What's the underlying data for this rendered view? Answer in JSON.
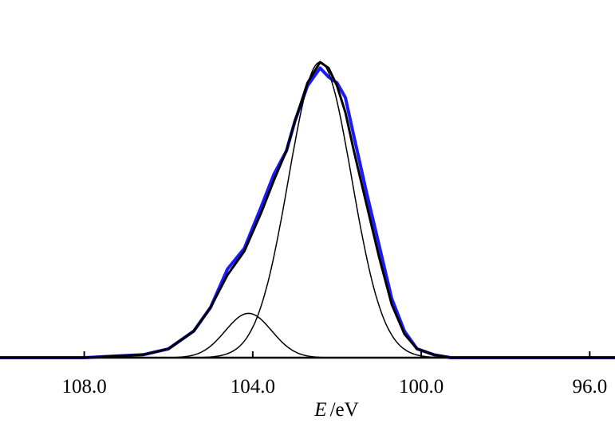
{
  "chart_data": {
    "type": "line",
    "title": "",
    "xlabel_var": "E",
    "xlabel_unit": "/eV",
    "x_reversed": true,
    "xlim": [
      110.0,
      95.4
    ],
    "ylim": [
      0,
      1.0
    ],
    "grid": false,
    "xticks": [
      {
        "value": 108.0,
        "label": "108.0"
      },
      {
        "value": 104.0,
        "label": "104.0"
      },
      {
        "value": 100.0,
        "label": "100.0"
      },
      {
        "value": 96.0,
        "label": "96.0"
      }
    ],
    "series": [
      {
        "kind": "measured",
        "color": "#1a1aff",
        "x": [
          110.0,
          108.0,
          106.6,
          106.0,
          105.4,
          105.0,
          104.6,
          104.2,
          103.8,
          103.5,
          103.2,
          103.0,
          102.7,
          102.4,
          102.2,
          102.0,
          101.8,
          101.6,
          101.3,
          101.0,
          100.7,
          100.4,
          100.1,
          99.7,
          99.3,
          98.0,
          96.0,
          95.4
        ],
        "y": [
          0.0,
          0.0,
          0.01,
          0.03,
          0.09,
          0.17,
          0.3,
          0.37,
          0.51,
          0.62,
          0.7,
          0.8,
          0.92,
          0.98,
          0.95,
          0.93,
          0.88,
          0.75,
          0.56,
          0.38,
          0.2,
          0.09,
          0.03,
          0.01,
          0.0,
          0.0,
          0.0,
          0.0
        ]
      },
      {
        "kind": "fit-envelope",
        "color": "#000000",
        "x": [
          110.0,
          108.0,
          106.6,
          106.0,
          105.4,
          105.0,
          104.6,
          104.2,
          103.8,
          103.5,
          103.2,
          103.0,
          102.7,
          102.4,
          102.2,
          102.0,
          101.8,
          101.6,
          101.3,
          101.0,
          100.7,
          100.4,
          100.1,
          99.7,
          99.3,
          98.0,
          96.0,
          95.4
        ],
        "y": [
          0.0,
          0.0,
          0.01,
          0.03,
          0.09,
          0.17,
          0.28,
          0.36,
          0.49,
          0.6,
          0.7,
          0.8,
          0.93,
          1.0,
          0.98,
          0.92,
          0.83,
          0.7,
          0.52,
          0.34,
          0.18,
          0.08,
          0.03,
          0.01,
          0.0,
          0.0,
          0.0,
          0.0
        ]
      },
      {
        "kind": "component",
        "color": "#000000",
        "center": 102.4,
        "amplitude": 1.0,
        "sigma": 0.75
      },
      {
        "kind": "component",
        "color": "#000000",
        "center": 104.1,
        "amplitude": 0.15,
        "sigma": 0.55
      }
    ]
  }
}
